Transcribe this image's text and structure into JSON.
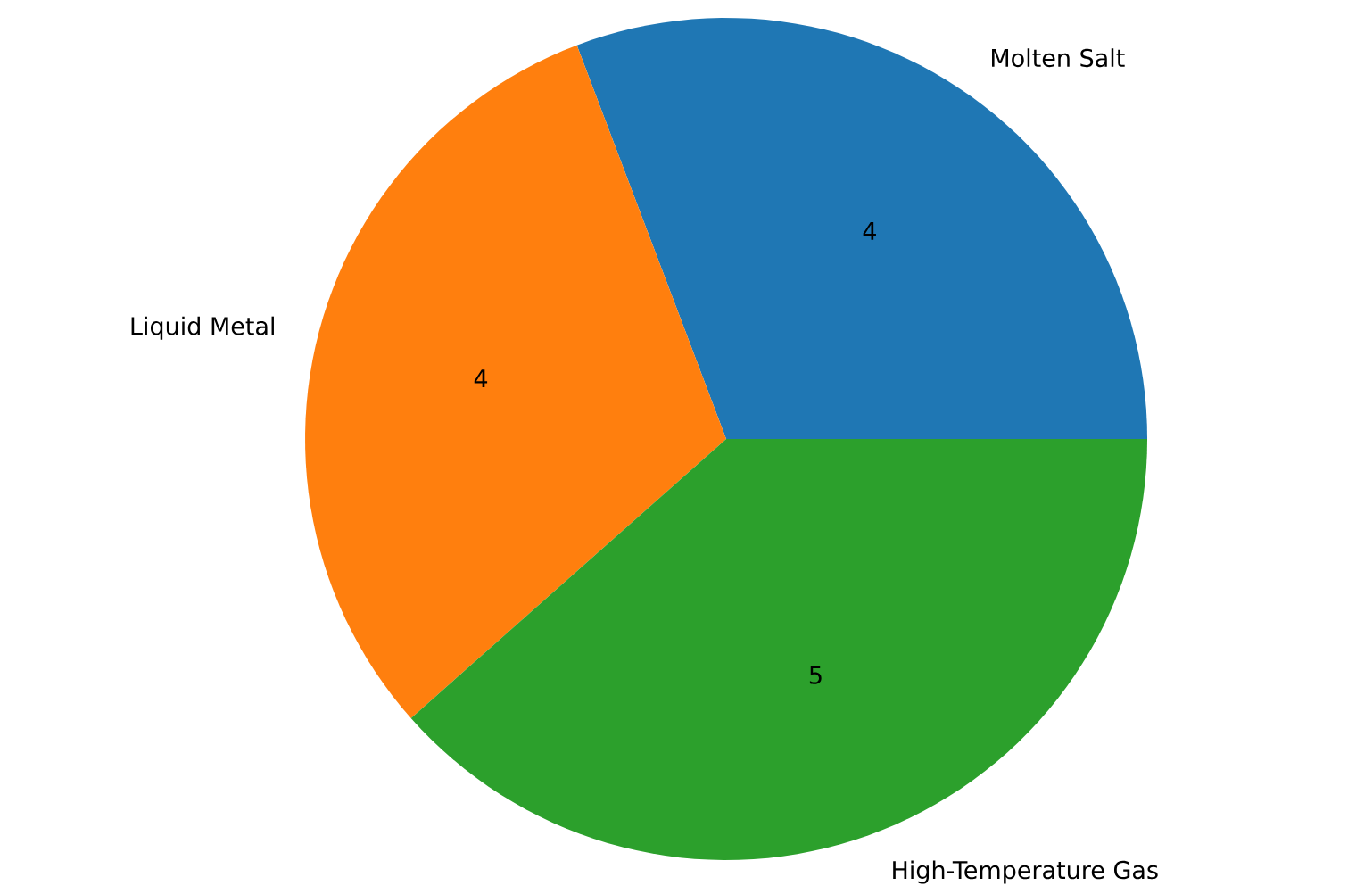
{
  "chart_data": {
    "type": "pie",
    "categories": [
      "Molten Salt",
      "Liquid Metal",
      "High-Temperature Gas"
    ],
    "values": [
      4,
      4,
      5
    ],
    "colors": [
      "#1f77b4",
      "#ff7f0e",
      "#2ca02c"
    ],
    "data_labels": true
  }
}
